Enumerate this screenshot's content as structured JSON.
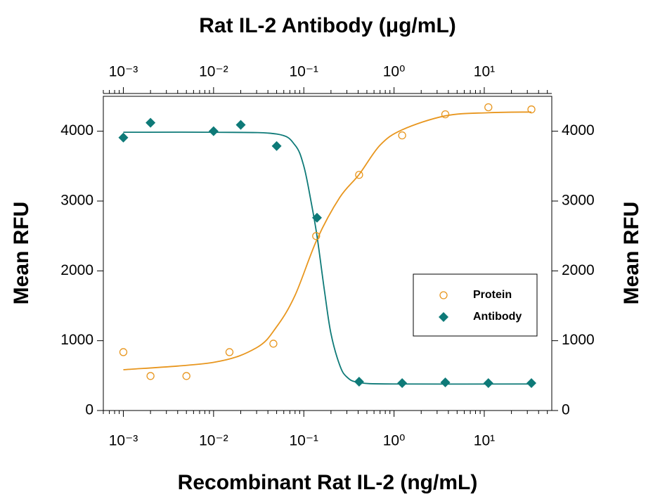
{
  "chart_data": {
    "type": "scatter",
    "title": "Rat IL-2 Antibody (μg/mL)",
    "x_label": "Recombinant Rat IL-2 (ng/mL)",
    "y_label": "Mean RFU",
    "y2_label": "Mean RFU",
    "x_log": true,
    "x2_log": true,
    "xlim": [
      0.0006,
      56
    ],
    "x2lim": [
      0.0006,
      56
    ],
    "xticks": [
      {
        "value": 0.001,
        "label": "10⁻³"
      },
      {
        "value": 0.01,
        "label": "10⁻²"
      },
      {
        "value": 0.1,
        "label": "10⁻¹"
      },
      {
        "value": 1,
        "label": "10⁰"
      },
      {
        "value": 10,
        "label": "10¹"
      }
    ],
    "x2ticks": [
      {
        "value": 0.001,
        "label": "10⁻³"
      },
      {
        "value": 0.01,
        "label": "10⁻²"
      },
      {
        "value": 0.1,
        "label": "10⁻¹"
      },
      {
        "value": 1,
        "label": "10⁰"
      },
      {
        "value": 10,
        "label": "10¹"
      }
    ],
    "ylim": [
      0,
      4500
    ],
    "yticks": [
      0,
      1000,
      2000,
      3000,
      4000
    ],
    "y2lim": [
      0,
      4500
    ],
    "y2ticks": [
      0,
      1000,
      2000,
      3000,
      4000
    ],
    "legend": "center-right",
    "series": [
      {
        "name": "Protein",
        "color": "#e8961e",
        "marker": "open-circle",
        "x": [
          0.001,
          0.002,
          0.005,
          0.015,
          0.046,
          0.137,
          0.41,
          1.23,
          3.7,
          11.1,
          33.3
        ],
        "values": [
          836,
          494,
          494,
          836,
          957,
          2499,
          3375,
          3940,
          4242,
          4343,
          4312
        ]
      },
      {
        "name": "Antibody",
        "color": "#0e7a78",
        "marker": "diamond",
        "x_axis": "x2",
        "x": [
          0.001,
          0.002,
          0.01,
          0.02,
          0.05,
          0.14,
          0.41,
          1.23,
          3.7,
          11.1,
          33.3
        ],
        "values": [
          3909,
          4121,
          4000,
          4091,
          3788,
          2761,
          413,
          393,
          403,
          393,
          393
        ]
      }
    ],
    "fits": [
      {
        "color": "#e8961e",
        "x": [
          0.001,
          0.01,
          0.03,
          0.05,
          0.08,
          0.14,
          0.25,
          0.41,
          0.7,
          1.23,
          3.7,
          11.1,
          33.3
        ],
        "values": [
          584,
          690,
          900,
          1200,
          1650,
          2450,
          3050,
          3380,
          3800,
          4020,
          4220,
          4265,
          4275
        ]
      },
      {
        "color": "#0e7a78",
        "x_axis": "x2",
        "x": [
          0.001,
          0.01,
          0.05,
          0.08,
          0.1,
          0.12,
          0.14,
          0.17,
          0.2,
          0.25,
          0.3,
          0.41,
          1,
          33.3
        ],
        "values": [
          3985,
          3985,
          3960,
          3800,
          3500,
          3000,
          2500,
          1700,
          1100,
          650,
          480,
          400,
          380,
          380
        ]
      }
    ]
  }
}
